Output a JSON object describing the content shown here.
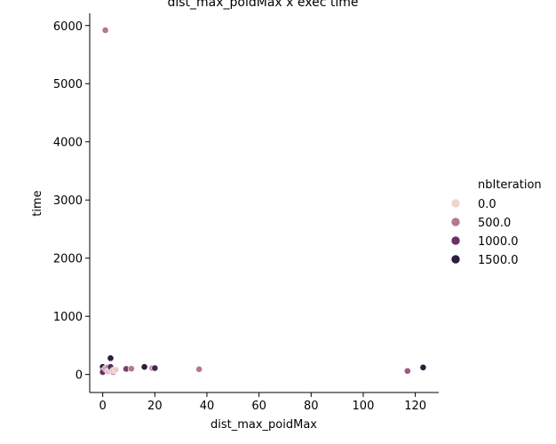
{
  "chart_data": {
    "type": "scatter",
    "title": "dist_max_poidMax x exec time",
    "xlabel": "dist_max_poidMax",
    "ylabel": "time",
    "xlim": [
      -5,
      129
    ],
    "ylim": [
      -310,
      6210
    ],
    "xticks": [
      0,
      20,
      40,
      60,
      80,
      100,
      120
    ],
    "yticks": [
      0,
      1000,
      2000,
      3000,
      4000,
      5000,
      6000
    ],
    "grid": false,
    "legend": {
      "title": "nbIteration",
      "placement": "right",
      "entries": [
        {
          "label": "0.0",
          "color": "#f0d3cf"
        },
        {
          "label": "500.0",
          "color": "#b7788f"
        },
        {
          "label": "1000.0",
          "color": "#6b306c"
        },
        {
          "label": "1500.0",
          "color": "#2d1e3e"
        }
      ]
    },
    "points": [
      {
        "x": 1,
        "y": 5920,
        "nbIteration": 500
      },
      {
        "x": 3,
        "y": 280,
        "nbIteration": 1500
      },
      {
        "x": 0,
        "y": 130,
        "nbIteration": 1500
      },
      {
        "x": 0,
        "y": 60,
        "nbIteration": 1500
      },
      {
        "x": 0,
        "y": 40,
        "nbIteration": 1000
      },
      {
        "x": 1,
        "y": 100,
        "nbIteration": 300
      },
      {
        "x": 2,
        "y": 120,
        "nbIteration": 500
      },
      {
        "x": 2,
        "y": 50,
        "nbIteration": 100
      },
      {
        "x": 3,
        "y": 90,
        "nbIteration": 200
      },
      {
        "x": 3,
        "y": 130,
        "nbIteration": 1200
      },
      {
        "x": 4,
        "y": 40,
        "nbIteration": 400
      },
      {
        "x": 4,
        "y": 70,
        "nbIteration": 100
      },
      {
        "x": 5,
        "y": 80,
        "nbIteration": 50
      },
      {
        "x": 9,
        "y": 100,
        "nbIteration": 600
      },
      {
        "x": 9,
        "y": 95,
        "nbIteration": 900
      },
      {
        "x": 11,
        "y": 100,
        "nbIteration": 500
      },
      {
        "x": 16,
        "y": 130,
        "nbIteration": 1500
      },
      {
        "x": 19,
        "y": 110,
        "nbIteration": 400
      },
      {
        "x": 20,
        "y": 110,
        "nbIteration": 1300
      },
      {
        "x": 37,
        "y": 90,
        "nbIteration": 500
      },
      {
        "x": 117,
        "y": 60,
        "nbIteration": 700
      },
      {
        "x": 123,
        "y": 120,
        "nbIteration": 1500
      }
    ]
  }
}
